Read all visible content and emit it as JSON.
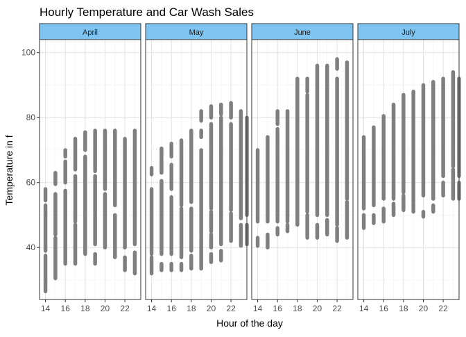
{
  "chart_data": {
    "type": "scatter",
    "title": "Hourly Temperature and Car Wash Sales",
    "xlabel": "Hour of the day",
    "ylabel": "Temperature in f",
    "xlim": [
      13.4,
      23.6
    ],
    "ylim": [
      24,
      104
    ],
    "x_ticks": [
      14,
      16,
      18,
      20,
      22
    ],
    "y_ticks": [
      40,
      60,
      80,
      100
    ],
    "grid": true,
    "legend": "none",
    "colors": {
      "points": "#7f7f7f",
      "strip_fill": "#7fc4f0",
      "grid_major": "#e2e2e2",
      "grid_minor": "#f1f1f1",
      "panel_border": "#333333",
      "text": "#1a1a1a",
      "tick_text": "#4d4d4d"
    },
    "panels": [
      {
        "name": "April",
        "series": [
          {
            "x": 14,
            "segments": [
              [
                26.5,
                37.5
              ],
              [
                39,
                53
              ],
              [
                54.5,
                58
              ]
            ]
          },
          {
            "x": 15,
            "segments": [
              [
                30.5,
                43
              ],
              [
                44,
                56.5
              ],
              [
                59.5,
                63
              ]
            ]
          },
          {
            "x": 16,
            "segments": [
              [
                35,
                57.5
              ],
              [
                60,
                66.5
              ],
              [
                68,
                70
              ]
            ]
          },
          {
            "x": 17,
            "segments": [
              [
                35,
                47
              ],
              [
                48,
                62
              ],
              [
                64,
                73.5
              ]
            ]
          },
          {
            "x": 18,
            "segments": [
              [
                38,
                68
              ],
              [
                70,
                75.5
              ]
            ]
          },
          {
            "x": 19,
            "segments": [
              [
                35,
                38
              ],
              [
                41,
                62
              ],
              [
                63.5,
                76
              ]
            ]
          },
          {
            "x": 20,
            "segments": [
              [
                40,
                56.5
              ],
              [
                58,
                76
              ]
            ]
          },
          {
            "x": 21,
            "segments": [
              [
                37,
                50
              ],
              [
                53,
                76
              ]
            ]
          },
          {
            "x": 22,
            "segments": [
              [
                33,
                37
              ],
              [
                40,
                73.5
              ]
            ]
          },
          {
            "x": 23,
            "segments": [
              [
                32,
                38.5
              ],
              [
                41,
                76
              ]
            ]
          }
        ]
      },
      {
        "name": "May",
        "series": [
          {
            "x": 14,
            "segments": [
              [
                32,
                37
              ],
              [
                38,
                58
              ],
              [
                62.5,
                64.5
              ]
            ]
          },
          {
            "x": 15,
            "segments": [
              [
                33,
                35
              ],
              [
                38,
                60.5
              ],
              [
                63,
                68
              ],
              [
                68.5,
                70.5
              ]
            ]
          },
          {
            "x": 16,
            "segments": [
              [
                33,
                35
              ],
              [
                38,
                55.5
              ],
              [
                58,
                65.5
              ],
              [
                68,
                72
              ]
            ]
          },
          {
            "x": 17,
            "segments": [
              [
                33,
                35
              ],
              [
                37,
                52
              ],
              [
                53,
                73
              ]
            ]
          },
          {
            "x": 18,
            "segments": [
              [
                33.5,
                37.5
              ],
              [
                39,
                52
              ],
              [
                54,
                76
              ]
            ]
          },
          {
            "x": 19,
            "segments": [
              [
                33.5,
                43.5
              ],
              [
                44,
                70
              ],
              [
                74,
                76
              ],
              [
                79,
                82
              ]
            ]
          },
          {
            "x": 20,
            "segments": [
              [
                35.5,
                38
              ],
              [
                40,
                44
              ],
              [
                45,
                51
              ],
              [
                52,
                78
              ],
              [
                80,
                83.5
              ]
            ]
          },
          {
            "x": 21,
            "segments": [
              [
                36,
                39
              ],
              [
                41,
                80
              ],
              [
                81,
                84
              ]
            ]
          },
          {
            "x": 22,
            "segments": [
              [
                42,
                50.5
              ],
              [
                51.5,
                78
              ],
              [
                80,
                84.5
              ]
            ]
          },
          {
            "x": 23,
            "segments": [
              [
                40.5,
                47
              ],
              [
                49,
                82
              ]
            ]
          },
          {
            "x": 23.6,
            "segments": [
              [
                41,
                47
              ],
              [
                50,
                80
              ]
            ]
          }
        ]
      },
      {
        "name": "June",
        "series": [
          {
            "x": 14,
            "segments": [
              [
                40.5,
                43
              ],
              [
                48,
                70
              ]
            ]
          },
          {
            "x": 15,
            "segments": [
              [
                40,
                44
              ],
              [
                48,
                74
              ]
            ]
          },
          {
            "x": 16,
            "segments": [
              [
                44,
                46
              ],
              [
                48,
                76.5
              ],
              [
                78,
                82
              ]
            ]
          },
          {
            "x": 17,
            "segments": [
              [
                45,
                47
              ],
              [
                48,
                82
              ]
            ]
          },
          {
            "x": 18,
            "segments": [
              [
                47,
                92
              ]
            ]
          },
          {
            "x": 19,
            "segments": [
              [
                43,
                50
              ],
              [
                51,
                87
              ],
              [
                88,
                92
              ]
            ]
          },
          {
            "x": 20,
            "segments": [
              [
                43,
                47
              ],
              [
                50,
                96
              ]
            ]
          },
          {
            "x": 21,
            "segments": [
              [
                44,
                48.5
              ],
              [
                50,
                96
              ]
            ]
          },
          {
            "x": 22,
            "segments": [
              [
                42,
                46
              ],
              [
                47,
                92
              ],
              [
                95,
                98
              ]
            ]
          },
          {
            "x": 23,
            "segments": [
              [
                43,
                54
              ],
              [
                55,
                97
              ]
            ]
          }
        ]
      },
      {
        "name": "July",
        "series": [
          {
            "x": 14,
            "segments": [
              [
                46,
                50
              ],
              [
                52,
                74
              ]
            ]
          },
          {
            "x": 15,
            "segments": [
              [
                47.5,
                50
              ],
              [
                53,
                77
              ]
            ]
          },
          {
            "x": 16,
            "segments": [
              [
                48,
                52
              ],
              [
                55,
                80.5
              ]
            ]
          },
          {
            "x": 17,
            "segments": [
              [
                50,
                53.5
              ],
              [
                55,
                84
              ]
            ]
          },
          {
            "x": 18,
            "segments": [
              [
                51.5,
                56
              ],
              [
                57,
                87
              ]
            ]
          },
          {
            "x": 19,
            "segments": [
              [
                51,
                53.5
              ],
              [
                54,
                88
              ]
            ]
          },
          {
            "x": 20,
            "segments": [
              [
                49.5,
                51
              ],
              [
                56,
                90
              ]
            ]
          },
          {
            "x": 21,
            "segments": [
              [
                51,
                53
              ],
              [
                55,
                91
              ]
            ]
          },
          {
            "x": 22,
            "segments": [
              [
                56,
                60
              ],
              [
                62,
                92
              ]
            ]
          },
          {
            "x": 23,
            "segments": [
              [
                55,
                64
              ],
              [
                65,
                94
              ]
            ]
          },
          {
            "x": 23.6,
            "segments": [
              [
                55,
                60
              ],
              [
                62,
                92
              ]
            ]
          }
        ]
      }
    ]
  }
}
